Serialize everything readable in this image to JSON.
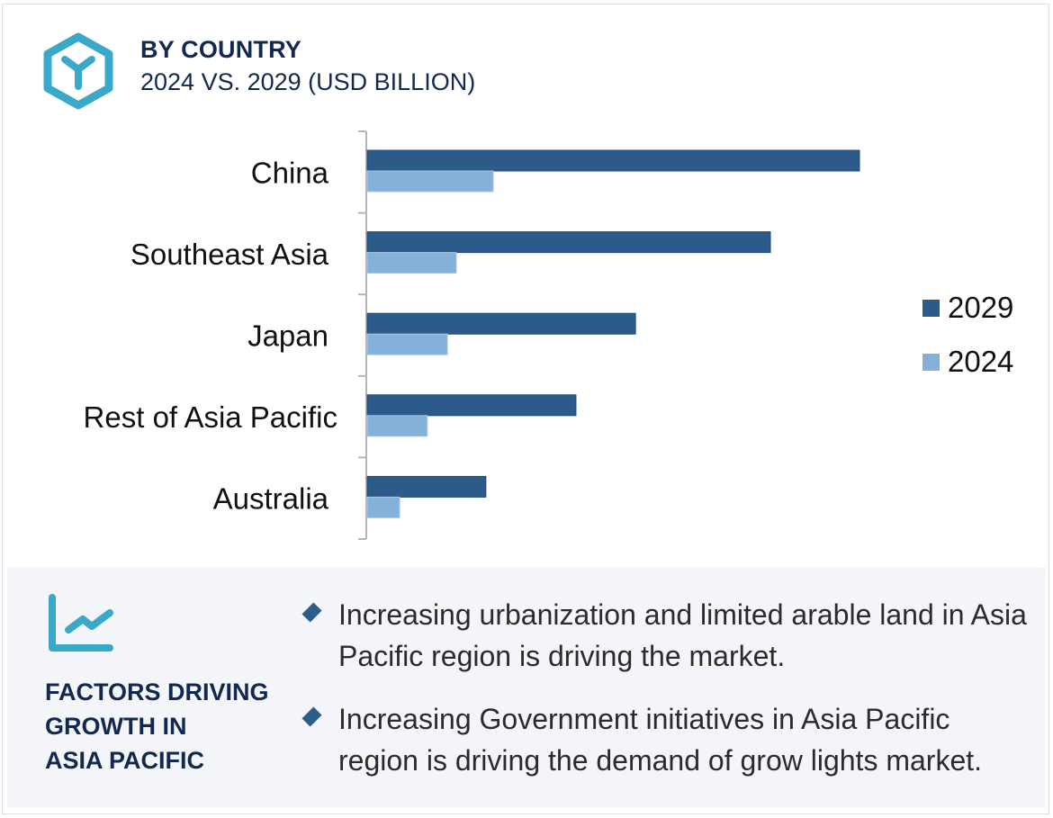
{
  "header": {
    "icon": "hexagon-y-icon",
    "title": "BY COUNTRY",
    "subtitle": "2024 VS. 2029 (USD BILLION)"
  },
  "chart_data": {
    "type": "bar",
    "orientation": "horizontal",
    "title": "BY COUNTRY",
    "subtitle": "2024 VS. 2029 (USD BILLION)",
    "xlabel": "",
    "ylabel": "",
    "value_units": "relative (no value axis shown; China 2029 = 100)",
    "xlim": [
      0,
      100
    ],
    "grid": false,
    "legend_position": "right",
    "categories": [
      "China",
      "Southeast Asia",
      "Japan",
      "Rest of Asia Pacific",
      "Australia"
    ],
    "series": [
      {
        "name": "2029",
        "color": "#2c5b8a",
        "values": [
          100,
          81.9,
          54.5,
          42.4,
          24.1
        ]
      },
      {
        "name": "2024",
        "color": "#85b0da",
        "values": [
          25.6,
          18.1,
          16.3,
          12.2,
          6.6
        ]
      }
    ]
  },
  "panel": {
    "icon": "line-chart-icon",
    "heading_lines": [
      "FACTORS DRIVING",
      "GROWTH IN",
      "ASIA PACIFIC"
    ],
    "bullet_icon": "diamond-icon",
    "bullets": [
      "Increasing urbanization and limited arable land in Asia Pacific region is driving the market.",
      "Increasing Government initiatives in Asia Pacific region is driving the demand of grow lights market."
    ]
  },
  "colors": {
    "accent": "#3aa8c8",
    "heading": "#13284f",
    "series_2029": "#2c5b8a",
    "series_2024": "#85b0da",
    "panel_bg": "#f3f5f9"
  }
}
